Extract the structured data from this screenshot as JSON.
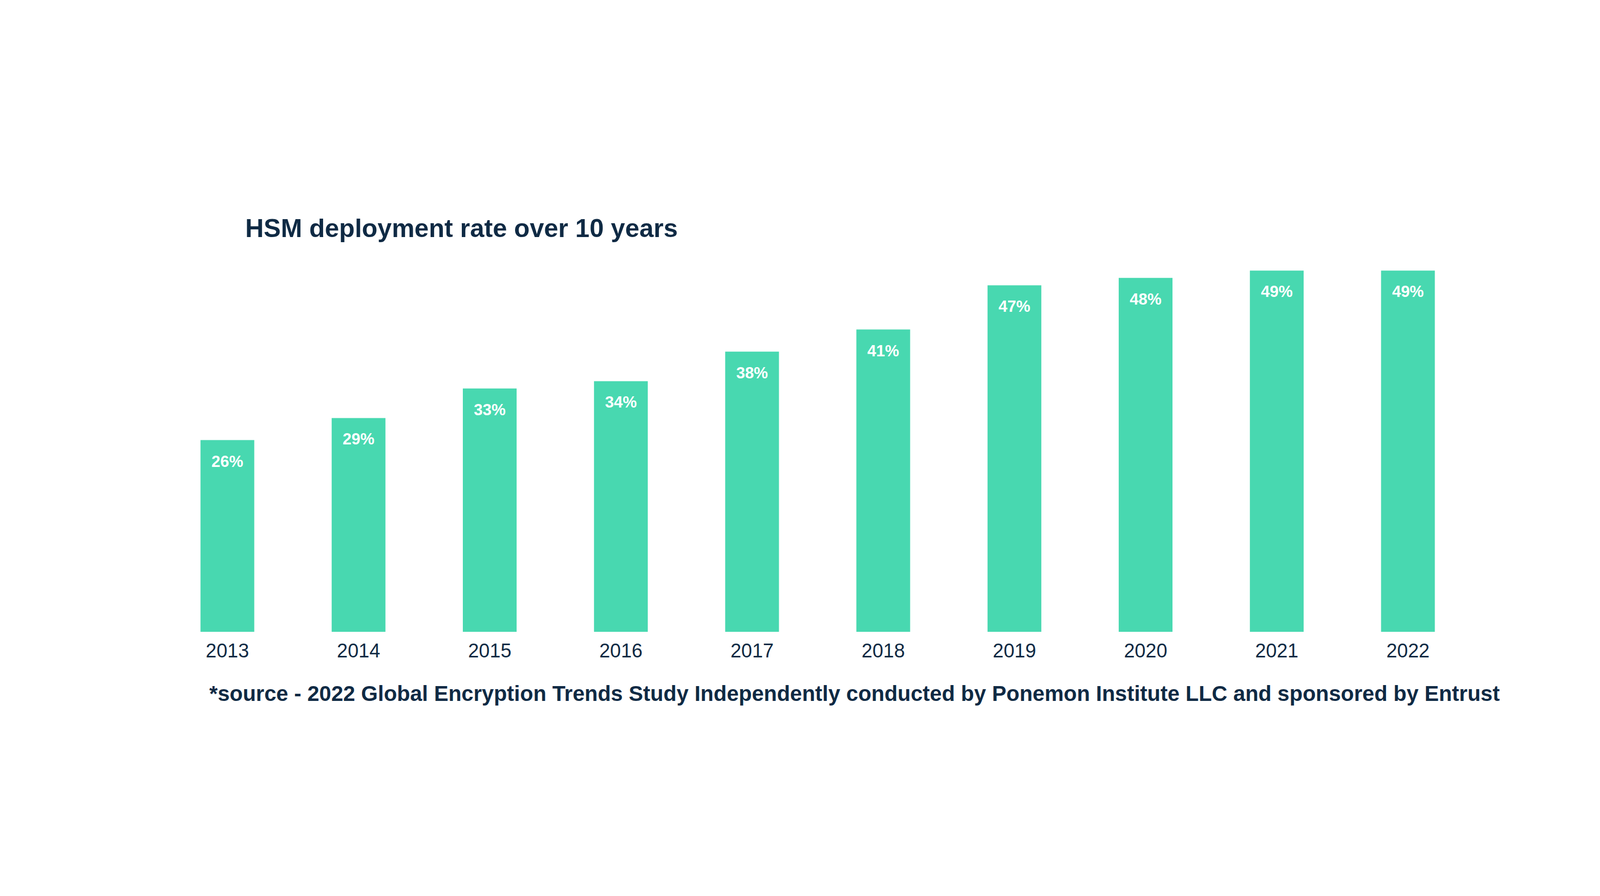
{
  "chart_data": {
    "type": "bar",
    "title": "HSM deployment rate over 10 years",
    "footnote": "*source - 2022 Global Encryption Trends Study Independently conducted by Ponemon Institute LLC and sponsored by Entrust",
    "categories": [
      "2013",
      "2014",
      "2015",
      "2016",
      "2017",
      "2018",
      "2019",
      "2020",
      "2021",
      "2022"
    ],
    "values": [
      26,
      29,
      33,
      34,
      38,
      41,
      47,
      48,
      49,
      49
    ],
    "value_labels": [
      "26%",
      "29%",
      "33%",
      "34%",
      "38%",
      "41%",
      "47%",
      "48%",
      "49%",
      "49%"
    ],
    "color": "#48d8b0",
    "ylim": [
      0,
      50
    ],
    "grid": false,
    "data_labels": true,
    "tick_labels": "x"
  }
}
